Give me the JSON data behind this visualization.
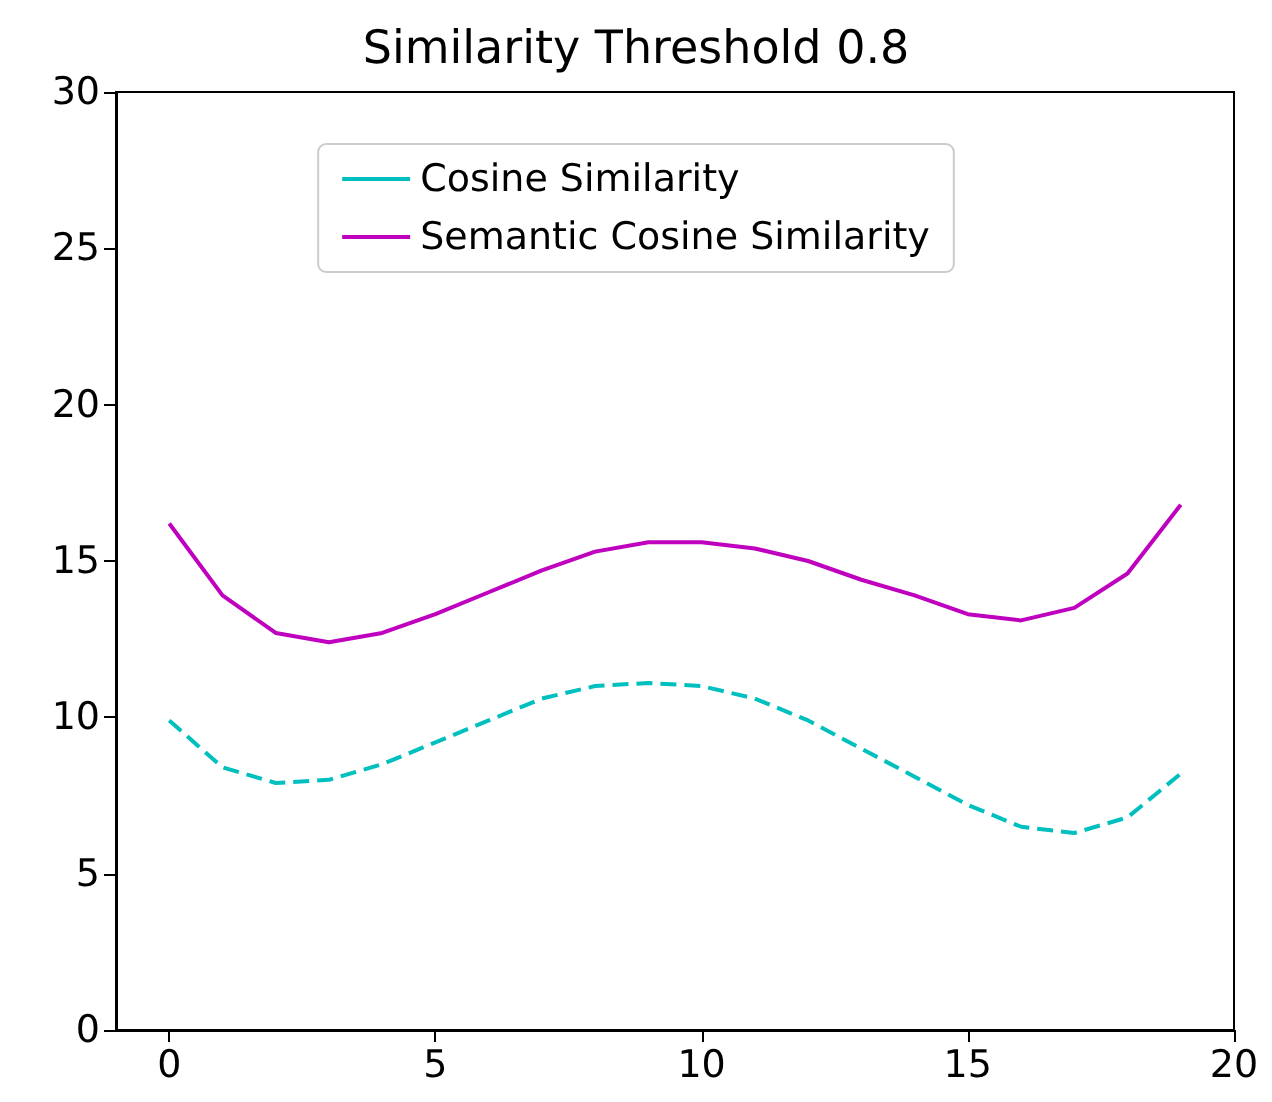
{
  "chart_data": {
    "type": "line",
    "title": "Similarity Threshold 0.8",
    "x": [
      0,
      1,
      2,
      3,
      4,
      5,
      6,
      7,
      8,
      9,
      10,
      11,
      12,
      13,
      14,
      15,
      16,
      17,
      18,
      19
    ],
    "series": [
      {
        "name": "Cosine Similarity",
        "color": "#00bfbf",
        "line_style": "dashed",
        "values": [
          9.9,
          8.4,
          7.9,
          8.0,
          8.5,
          9.2,
          9.9,
          10.6,
          11.0,
          11.1,
          11.0,
          10.6,
          9.9,
          9.0,
          8.1,
          7.2,
          6.5,
          6.3,
          6.8,
          8.2
        ]
      },
      {
        "name": "Semantic Cosine Similarity",
        "color": "#bf00bf",
        "line_style": "solid",
        "values": [
          16.2,
          13.9,
          12.7,
          12.4,
          12.7,
          13.3,
          14.0,
          14.7,
          15.3,
          15.6,
          15.6,
          15.4,
          15.0,
          14.4,
          13.9,
          13.3,
          13.1,
          13.5,
          14.6,
          16.8
        ]
      }
    ],
    "xlim": [
      -1,
      20
    ],
    "xticks": [
      0,
      5,
      10,
      15,
      20
    ],
    "ylim": [
      0,
      30
    ],
    "yticks": [
      0,
      5,
      10,
      15,
      20,
      25,
      30
    ],
    "grid": false,
    "legend": "top",
    "marker": "none"
  }
}
